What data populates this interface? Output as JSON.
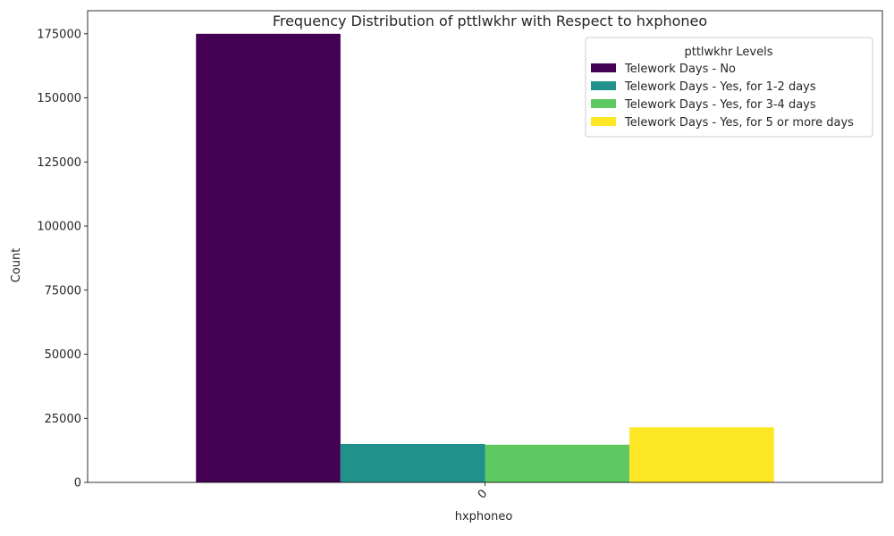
{
  "chart_data": {
    "type": "bar",
    "title": "Frequency Distribution of pttlwkhr with Respect to hxphoneo",
    "xlabel": "hxphoneo",
    "ylabel": "Count",
    "categories": [
      "0"
    ],
    "ylim": [
      0,
      184000
    ],
    "yticks": [
      0,
      25000,
      50000,
      75000,
      100000,
      125000,
      150000,
      175000
    ],
    "legend_title": "pttlwkhr Levels",
    "legend_position": "top-right",
    "grid": false,
    "series": [
      {
        "name": "Telework Days - No",
        "values": [
          175000
        ],
        "color": "#440154"
      },
      {
        "name": "Telework Days - Yes, for 1-2 days",
        "values": [
          15000
        ],
        "color": "#21918c"
      },
      {
        "name": "Telework Days - Yes, for 3-4 days",
        "values": [
          14700
        ],
        "color": "#5ec962"
      },
      {
        "name": "Telework Days - Yes, for 5 or more days",
        "values": [
          21500
        ],
        "color": "#fde725"
      }
    ]
  }
}
